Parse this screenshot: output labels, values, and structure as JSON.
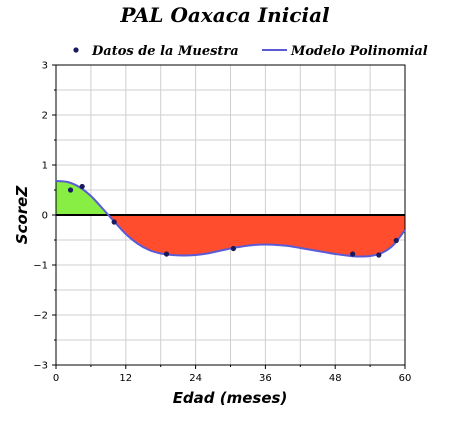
{
  "chart_data": {
    "type": "line",
    "title": "PAL Oaxaca Inicial",
    "xlabel": "Edad (meses)",
    "ylabel": "ScoreZ",
    "xlim": [
      0,
      60
    ],
    "ylim": [
      -3,
      3
    ],
    "x_ticks": [
      0,
      12,
      24,
      36,
      48,
      60
    ],
    "y_ticks": [
      -3,
      -2,
      -1,
      0,
      1,
      2,
      3
    ],
    "grid": true,
    "legend_position": "top",
    "series": [
      {
        "name": "Datos de la Muestra",
        "kind": "scatter",
        "color": "#1a1a5e",
        "x": [
          2.5,
          4.5,
          10,
          19,
          30.5,
          51,
          55.5,
          58.5
        ],
        "y": [
          0.5,
          0.57,
          -0.14,
          -0.78,
          -0.67,
          -0.78,
          -0.8,
          -0.51
        ]
      },
      {
        "name": "Modelo Polinomial",
        "kind": "line",
        "color": "#5b5bd6",
        "x": [
          0,
          2,
          4,
          6,
          8,
          10,
          12,
          14,
          16,
          18,
          20,
          22,
          24,
          26,
          28,
          30,
          32,
          34,
          36,
          38,
          40,
          42,
          44,
          46,
          48,
          50,
          52,
          54,
          56,
          58,
          60
        ],
        "y": [
          0.68,
          0.66,
          0.56,
          0.38,
          0.13,
          -0.13,
          -0.38,
          -0.57,
          -0.7,
          -0.77,
          -0.8,
          -0.81,
          -0.8,
          -0.77,
          -0.72,
          -0.67,
          -0.63,
          -0.6,
          -0.59,
          -0.6,
          -0.62,
          -0.66,
          -0.7,
          -0.74,
          -0.78,
          -0.81,
          -0.83,
          -0.82,
          -0.76,
          -0.6,
          -0.3
        ]
      }
    ],
    "fill_colors": {
      "positive": "#88ee44",
      "negative": "#ff4d2e"
    }
  }
}
